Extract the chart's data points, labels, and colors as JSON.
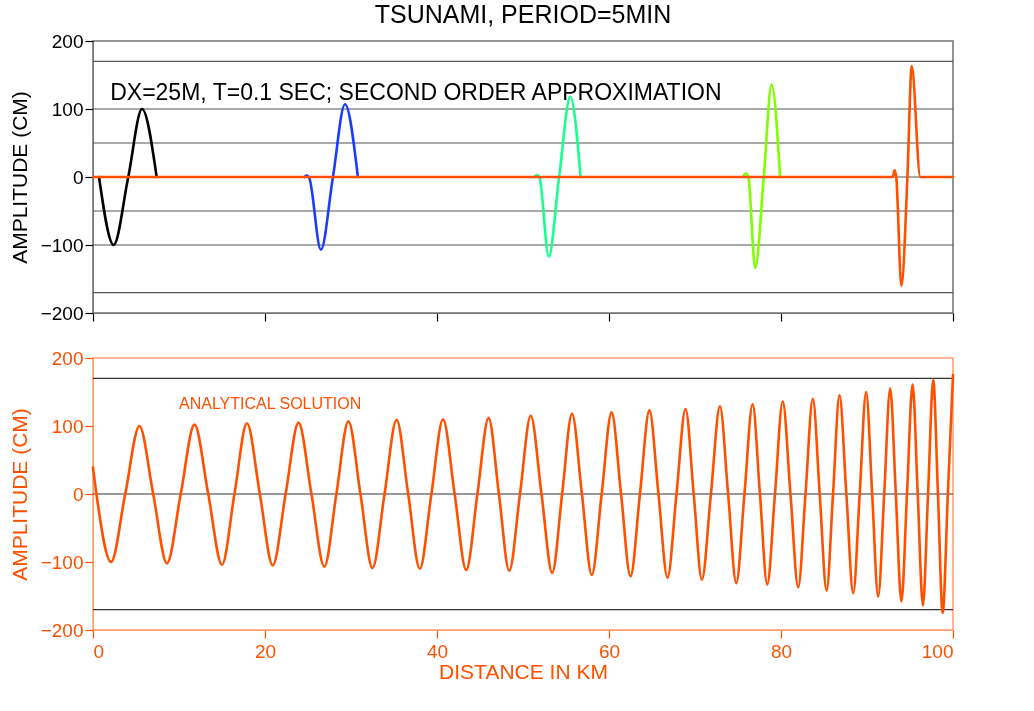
{
  "chart_data": [
    {
      "type": "line",
      "title": "TSUNAMI, PERIOD=5MIN",
      "ylabel": "AMPLITUDE (CM)",
      "xlim": [
        0,
        100
      ],
      "xticks": [
        0,
        20,
        40,
        60,
        80,
        100
      ],
      "ylim": [
        -200,
        200
      ],
      "yticks": [
        -200,
        -100,
        0,
        100,
        200
      ],
      "tick_labels": "y",
      "grid": false,
      "line_style": "solid",
      "marker": "none",
      "annotations": [
        "DX=25M, T=0.1 SEC;  SECOND ORDER APPROXIMATION"
      ],
      "ref_lines": [
        {
          "axis": "y",
          "value": 170,
          "color": "#555555"
        },
        {
          "axis": "y",
          "value": 100,
          "color": "#555555"
        },
        {
          "axis": "y",
          "value": 50,
          "color": "#555555"
        },
        {
          "axis": "y",
          "value": 0,
          "color": "#555555"
        },
        {
          "axis": "y",
          "value": -50,
          "color": "#555555"
        },
        {
          "axis": "y",
          "value": -100,
          "color": "#555555"
        },
        {
          "axis": "y",
          "value": -170,
          "color": "#555555"
        }
      ],
      "series": [
        {
          "color": "#000000",
          "x": [
            0.7,
            2.4,
            4.1,
            5.7,
            7.4
          ],
          "values": [
            0,
            -100,
            0,
            100,
            0
          ]
        },
        {
          "color": "#1a3cff",
          "x": [
            24.6,
            24.8,
            25.1,
            26.5,
            27.9,
            29.3,
            30.8
          ],
          "values": [
            0,
            2,
            0,
            -107,
            0,
            107,
            0
          ]
        },
        {
          "color": "#19ff8c",
          "x": [
            51.3,
            51.6,
            51.9,
            53.0,
            54.2,
            55.5,
            56.7
          ],
          "values": [
            0,
            3,
            0,
            -117,
            0,
            118,
            0
          ]
        },
        {
          "color": "#7fff00",
          "x": [
            75.6,
            75.9,
            76.2,
            77.0,
            78.0,
            78.9,
            79.9
          ],
          "values": [
            0,
            5,
            0,
            -134,
            0,
            136,
            0
          ]
        },
        {
          "color": "#ff5000",
          "x": [
            0,
            93.0,
            93.2,
            93.4,
            94.0,
            94.7,
            95.2,
            96.2,
            100
          ],
          "values": [
            0,
            0,
            10,
            0,
            -160,
            0,
            163,
            0,
            0
          ]
        }
      ]
    },
    {
      "type": "line",
      "xlabel": "DISTANCE IN KM",
      "ylabel": "AMPLITUDE (CM)",
      "xlim": [
        0,
        100
      ],
      "xticks": [
        0,
        20,
        40,
        60,
        80,
        100
      ],
      "ylim": [
        -200,
        200
      ],
      "yticks": [
        -200,
        -100,
        0,
        100,
        200
      ],
      "grid": false,
      "line_style": "solid",
      "marker": "none",
      "annotations": [
        "ANALYTICAL SOLUTION"
      ],
      "ref_lines": [
        {
          "axis": "y",
          "value": 170,
          "color": "#333333"
        },
        {
          "axis": "y",
          "value": 0,
          "color": "#333333"
        },
        {
          "axis": "y",
          "value": -170,
          "color": "#333333"
        }
      ],
      "series": [
        {
          "color": "#ff5000",
          "x": [
            0,
            0.4,
            2.1,
            3.75,
            5.4,
            7.0,
            8.6,
            10.2,
            11.8,
            13.4,
            15.0,
            16.45,
            17.9,
            19.4,
            20.9,
            22.4,
            23.9,
            25.4,
            26.9,
            28.3,
            29.7,
            31.1,
            32.5,
            33.9,
            35.3,
            36.65,
            38.0,
            39.35,
            40.7,
            42.05,
            43.4,
            44.7,
            46.0,
            47.2,
            48.4,
            49.65,
            50.9,
            52.15,
            53.4,
            54.55,
            55.7,
            56.85,
            58.0,
            59.15,
            60.3,
            61.4,
            62.5,
            63.6,
            64.7,
            65.75,
            66.8,
            67.85,
            68.9,
            69.85,
            70.8,
            71.85,
            72.9,
            73.85,
            74.8,
            75.75,
            76.7,
            77.55,
            78.4,
            79.3,
            80.2,
            81.1,
            82.0,
            82.85,
            83.7,
            84.5,
            85.3,
            86.05,
            86.8,
            87.6,
            88.4,
            89.15,
            89.9,
            90.6,
            91.3,
            92.0,
            92.7,
            93.35,
            94.0,
            94.65,
            95.3,
            95.9,
            96.5,
            97.1,
            97.7,
            98.25,
            98.8,
            99.4,
            100
          ],
          "values": [
            39,
            0,
            -100,
            0,
            100,
            0,
            -102,
            0,
            102,
            0,
            -104,
            0,
            104,
            0,
            -105,
            0,
            105,
            0,
            -107,
            0,
            107,
            0,
            -109,
            0,
            109,
            0,
            -110,
            0,
            110,
            0,
            -112,
            0,
            112,
            0,
            -113,
            0,
            115,
            0,
            -116,
            0,
            118,
            0,
            -119,
            0,
            120,
            0,
            -121,
            0,
            123,
            0,
            -123,
            0,
            125,
            0,
            -126,
            0,
            129,
            0,
            -131,
            0,
            132,
            0,
            -133,
            0,
            136,
            0,
            -137,
            0,
            140,
            0,
            -142,
            0,
            145,
            0,
            -146,
            0,
            150,
            0,
            -151,
            0,
            155,
            0,
            -158,
            0,
            161,
            0,
            -164,
            0,
            168,
            0,
            -175,
            0,
            175
          ]
        }
      ]
    }
  ]
}
